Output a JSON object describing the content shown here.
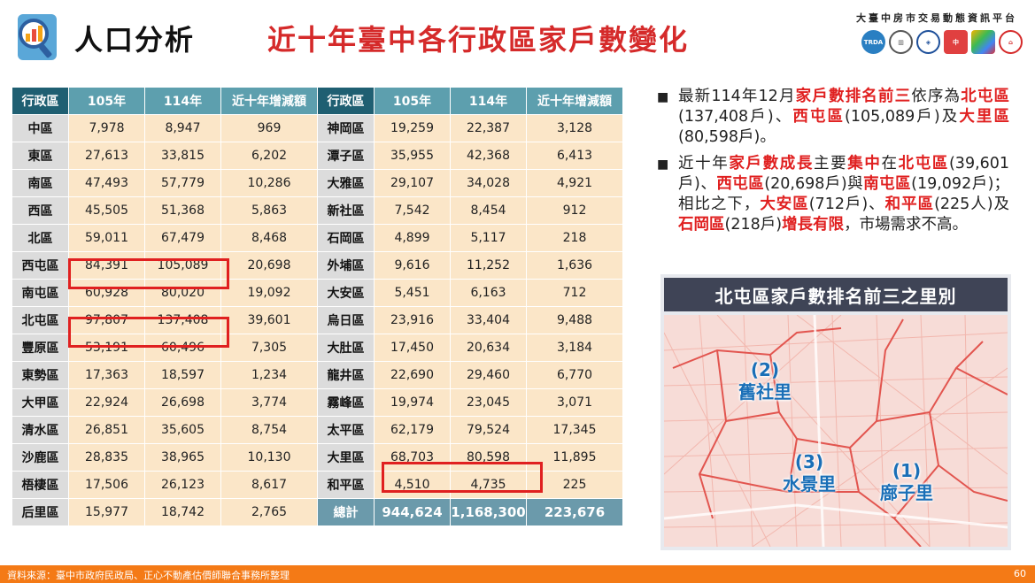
{
  "header": {
    "title_main": "人口分析",
    "title_sub": "近十年臺中各行政區家戶數變化",
    "platform": "大臺中房市交易動態資訊平台",
    "org_logos": [
      "TRDA",
      "政府機關",
      "地政",
      "中",
      "六角標誌",
      "CTREAA"
    ]
  },
  "table": {
    "headers": [
      "行政區",
      "105年",
      "114年",
      "近十年增減額",
      "行政區",
      "105年",
      "114年",
      "近十年增減額"
    ],
    "rows": [
      [
        "中區",
        "7,978",
        "8,947",
        "969",
        "神岡區",
        "19,259",
        "22,387",
        "3,128"
      ],
      [
        "東區",
        "27,613",
        "33,815",
        "6,202",
        "潭子區",
        "35,955",
        "42,368",
        "6,413"
      ],
      [
        "南區",
        "47,493",
        "57,779",
        "10,286",
        "大雅區",
        "29,107",
        "34,028",
        "4,921"
      ],
      [
        "西區",
        "45,505",
        "51,368",
        "5,863",
        "新社區",
        "7,542",
        "8,454",
        "912"
      ],
      [
        "北區",
        "59,011",
        "67,479",
        "8,468",
        "石岡區",
        "4,899",
        "5,117",
        "218"
      ],
      [
        "西屯區",
        "84,391",
        "105,089",
        "20,698",
        "外埔區",
        "9,616",
        "11,252",
        "1,636"
      ],
      [
        "南屯區",
        "60,928",
        "80,020",
        "19,092",
        "大安區",
        "5,451",
        "6,163",
        "712"
      ],
      [
        "北屯區",
        "97,807",
        "137,408",
        "39,601",
        "烏日區",
        "23,916",
        "33,404",
        "9,488"
      ],
      [
        "豐原區",
        "53,191",
        "60,496",
        "7,305",
        "大肚區",
        "17,450",
        "20,634",
        "3,184"
      ],
      [
        "東勢區",
        "17,363",
        "18,597",
        "1,234",
        "龍井區",
        "22,690",
        "29,460",
        "6,770"
      ],
      [
        "大甲區",
        "22,924",
        "26,698",
        "3,774",
        "霧峰區",
        "19,974",
        "23,045",
        "3,071"
      ],
      [
        "清水區",
        "26,851",
        "35,605",
        "8,754",
        "太平區",
        "62,179",
        "79,524",
        "17,345"
      ],
      [
        "沙鹿區",
        "28,835",
        "38,965",
        "10,130",
        "大里區",
        "68,703",
        "80,598",
        "11,895"
      ],
      [
        "梧棲區",
        "17,506",
        "26,123",
        "8,617",
        "和平區",
        "4,510",
        "4,735",
        "225"
      ],
      [
        "后里區",
        "15,977",
        "18,742",
        "2,765",
        "總計",
        "944,624",
        "1,168,300",
        "223,676"
      ]
    ]
  },
  "notes": [
    {
      "segments": [
        {
          "t": "最新114年12月",
          "r": false
        },
        {
          "t": "家戶數排名前三",
          "r": true
        },
        {
          "t": "依序為",
          "r": false
        },
        {
          "t": "北屯區",
          "r": true
        },
        {
          "t": "(137,408戶)、",
          "r": false
        },
        {
          "t": "西屯區",
          "r": true
        },
        {
          "t": "(105,089戶)及",
          "r": false
        },
        {
          "t": "大里區",
          "r": true
        },
        {
          "t": "(80,598戶)。",
          "r": false
        }
      ]
    },
    {
      "segments": [
        {
          "t": "近十年",
          "r": false
        },
        {
          "t": "家戶數成長",
          "r": true
        },
        {
          "t": "主要",
          "r": false
        },
        {
          "t": "集中",
          "r": true
        },
        {
          "t": "在",
          "r": false
        },
        {
          "t": "北屯區",
          "r": true
        },
        {
          "t": "(39,601戶)、",
          "r": false
        },
        {
          "t": "西屯區",
          "r": true
        },
        {
          "t": "(20,698戶)與",
          "r": false
        },
        {
          "t": "南屯區",
          "r": true
        },
        {
          "t": "(19,092戶)；相比之下，",
          "r": false
        },
        {
          "t": "大安區",
          "r": true
        },
        {
          "t": "(712戶)、",
          "r": false
        },
        {
          "t": "和平區",
          "r": true
        },
        {
          "t": "(225人)及",
          "r": false
        },
        {
          "t": "石岡區",
          "r": true
        },
        {
          "t": "(218戶)",
          "r": false
        },
        {
          "t": "增長有限",
          "r": true
        },
        {
          "t": "，市場需求不高。",
          "r": false
        }
      ]
    }
  ],
  "map": {
    "title": "北屯區家戶數排名前三之里別",
    "labels": [
      {
        "rank": "(2)",
        "name": "舊社里"
      },
      {
        "rank": "(3)",
        "name": "水景里"
      },
      {
        "rank": "(1)",
        "name": "廍子里"
      }
    ]
  },
  "footer": {
    "source": "資料來源：臺中市政府民政局、正心不動產估價師聯合事務所整理",
    "page": "60"
  },
  "colors": {
    "accent_red": "#e02020",
    "header_teal": "#5d9fae",
    "footer_orange": "#f47a16",
    "map_title_bg": "#3f4456",
    "map_label_blue": "#1a6fb7"
  }
}
